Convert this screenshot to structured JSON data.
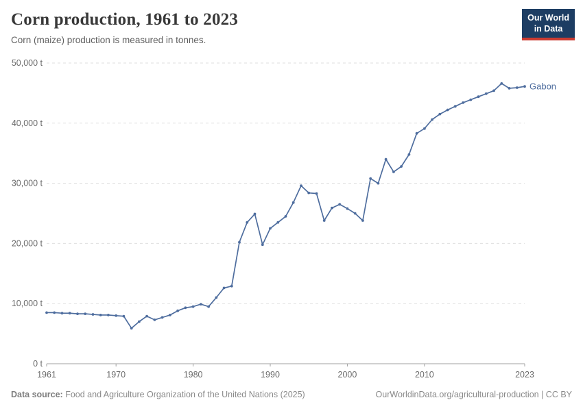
{
  "header": {
    "title": "Corn production, 1961 to 2023",
    "subtitle": "Corn (maize) production is measured in tonnes.",
    "logo": {
      "line1": "Our World",
      "line2": "in Data"
    }
  },
  "footer": {
    "source_label": "Data source:",
    "source_text": " Food and Agriculture Organization of the United Nations (2025)",
    "link_text": "OurWorldinData.org/agricultural-production | CC BY"
  },
  "colors": {
    "line": "#4e6d9e",
    "grid": "#dfdfdf",
    "axis": "#a0a0a0",
    "tick_text": "#6b6b6b",
    "logo_bg": "#1d3d63",
    "logo_red": "#cc3b31"
  },
  "chart_data": {
    "type": "line",
    "title": "Corn production, 1961 to 2023",
    "xlabel": "",
    "ylabel": "tonnes",
    "xlim": [
      1961,
      2023
    ],
    "ylim": [
      0,
      50000
    ],
    "grid": "horizontal-dashed",
    "legend_position": "end-of-line-label",
    "xticks": [
      1961,
      1970,
      1980,
      1990,
      2000,
      2010,
      2023
    ],
    "xtick_labels": [
      "1961",
      "1970",
      "1980",
      "1990",
      "2000",
      "2010",
      "2023"
    ],
    "yticks": [
      0,
      10000,
      20000,
      30000,
      40000,
      50000
    ],
    "ytick_labels": [
      "0 t",
      "10,000 t",
      "20,000 t",
      "30,000 t",
      "40,000 t",
      "50,000 t"
    ],
    "series": [
      {
        "name": "Gabon",
        "x": [
          1961,
          1962,
          1963,
          1964,
          1965,
          1966,
          1967,
          1968,
          1969,
          1970,
          1971,
          1972,
          1973,
          1974,
          1975,
          1976,
          1977,
          1978,
          1979,
          1980,
          1981,
          1982,
          1983,
          1984,
          1985,
          1986,
          1987,
          1988,
          1989,
          1990,
          1991,
          1992,
          1993,
          1994,
          1995,
          1996,
          1997,
          1998,
          1999,
          2000,
          2001,
          2002,
          2003,
          2004,
          2005,
          2006,
          2007,
          2008,
          2009,
          2010,
          2011,
          2012,
          2013,
          2014,
          2015,
          2016,
          2017,
          2018,
          2019,
          2020,
          2021,
          2022,
          2023
        ],
        "values": [
          8500,
          8500,
          8400,
          8400,
          8300,
          8300,
          8200,
          8100,
          8100,
          8000,
          7900,
          5900,
          7000,
          7900,
          7300,
          7700,
          8100,
          8800,
          9300,
          9500,
          9900,
          9500,
          11000,
          12600,
          12900,
          20200,
          23500,
          24900,
          19800,
          22500,
          23500,
          24500,
          26800,
          29600,
          28400,
          28300,
          23800,
          25900,
          26500,
          25800,
          25000,
          23800,
          30800,
          30000,
          34000,
          31900,
          32800,
          34800,
          38300,
          39100,
          40600,
          41500,
          42200,
          42800,
          43400,
          43900,
          44400,
          44900,
          45400,
          46600,
          45800,
          45900,
          46100
        ]
      }
    ]
  }
}
